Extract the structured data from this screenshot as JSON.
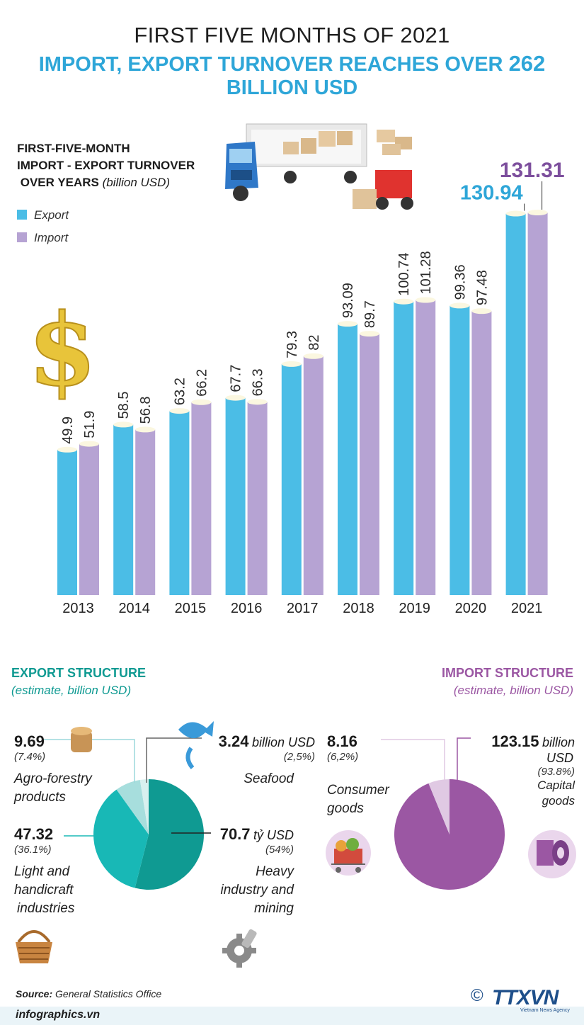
{
  "header": {
    "title_line1": "FIRST FIVE MONTHS OF 2021",
    "title_line2_prefix": "IMPORT, EXPORT TURNOVER REACHES OVER ",
    "title_line2_number": "262",
    "title_line2_suffix": " BILLION USD"
  },
  "legend": {
    "line1": "FIRST-FIVE-MONTH",
    "line2": "IMPORT - EXPORT TURNOVER",
    "line3": "OVER YEARS",
    "unit": "(billion USD)",
    "export_label": "Export",
    "import_label": "Import"
  },
  "colors": {
    "export": "#4bbde6",
    "import": "#b6a3d3",
    "export_text": "#2ea6d8",
    "import_text": "#7d4f9d",
    "export_pie_dark": "#0f9a92",
    "export_pie_mid": "#18b8b6",
    "export_pie_light": "#a7dedd",
    "export_pie_pale": "#d8f0ef",
    "import_pie_main": "#9b57a3",
    "import_pie_light": "#e0c9e3"
  },
  "chart_data": {
    "type": "bar",
    "title": "FIRST-FIVE-MONTH IMPORT - EXPORT TURNOVER OVER YEARS",
    "ylabel": "billion USD",
    "categories": [
      "2013",
      "2014",
      "2015",
      "2016",
      "2017",
      "2018",
      "2019",
      "2020",
      "2021"
    ],
    "series": [
      {
        "name": "Export",
        "values": [
          49.9,
          58.5,
          63.2,
          67.7,
          79.3,
          93.09,
          100.74,
          99.36,
          130.94
        ],
        "labels": [
          "49.9",
          "58.5",
          "63.2",
          "67.7",
          "79.3",
          "93.09",
          "100.74",
          "99.36",
          "130.94"
        ]
      },
      {
        "name": "Import",
        "values": [
          51.9,
          56.8,
          66.2,
          66.3,
          82,
          89.7,
          101.28,
          97.48,
          131.31
        ],
        "labels": [
          "51.9",
          "56.8",
          "66.2",
          "66.3",
          "82",
          "89.7",
          "101.28",
          "97.48",
          "131.31"
        ]
      }
    ],
    "ylim": [
      0,
      131.31
    ]
  },
  "export_structure": {
    "title": "EXPORT STRUCTURE",
    "subtitle": "(estimate, billion USD)",
    "items": [
      {
        "value": "9.69",
        "unit": "",
        "pct": "(7.4%)",
        "name_lines": [
          "Agro-forestry",
          "products"
        ],
        "share": 7.4
      },
      {
        "value": "3.24",
        "unit": "billion USD",
        "pct": "(2,5%)",
        "name_lines": [
          "Seafood"
        ],
        "share": 2.5
      },
      {
        "value": "47.32",
        "unit": "",
        "pct": "(36.1%)",
        "name_lines": [
          "Light and",
          "handicraft",
          "industries"
        ],
        "share": 36.1
      },
      {
        "value": "70.7",
        "unit": "tỷ USD",
        "pct": "(54%)",
        "name_lines": [
          "Heavy",
          "industry and",
          "mining"
        ],
        "share": 54
      }
    ]
  },
  "import_structure": {
    "title": "IMPORT STRUCTURE",
    "subtitle": "(estimate, billion USD)",
    "items": [
      {
        "value": "8.16",
        "unit": "",
        "pct": "(6,2%)",
        "name_lines": [
          "Consumer",
          "goods"
        ],
        "share": 6.2
      },
      {
        "value": "123.15",
        "unit": "billion",
        "unit2": "USD",
        "pct": "(93.8%)",
        "name_lines": [
          "Capital",
          "goods"
        ],
        "share": 93.8
      }
    ]
  },
  "footer": {
    "source_label": "Source:",
    "source_text": "General Statistics Office",
    "website": "infographics.vn",
    "copyright": "©",
    "brand": "TTXVN",
    "brand_sub": "Vietnam News Agency"
  }
}
